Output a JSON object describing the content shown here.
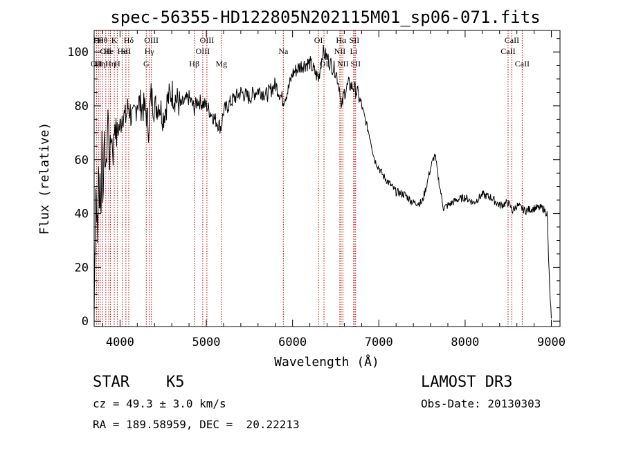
{
  "chart_data": {
    "type": "line",
    "title": "spec-56355-HD122805N202115M01_sp06-071.fits",
    "xlabel": "Wavelength (Å)",
    "ylabel": "Flux (relative)",
    "xlim": [
      3700,
      9100
    ],
    "ylim": [
      -2,
      108
    ],
    "xticks": [
      4000,
      5000,
      6000,
      7000,
      8000,
      9000
    ],
    "yticks": [
      0,
      20,
      40,
      60,
      80,
      100
    ],
    "grid": false,
    "series": [
      {
        "x": [
          3700,
          3710,
          3720,
          3730,
          3740,
          3750,
          3760,
          3770,
          3780,
          3790,
          3800,
          3820,
          3840,
          3860,
          3880,
          3900,
          3920,
          3940,
          3960,
          3980,
          4000,
          4030,
          4060,
          4100,
          4150,
          4200,
          4250,
          4300,
          4330,
          4360,
          4400,
          4450,
          4500,
          4550,
          4600,
          4700,
          4800,
          4860,
          4900,
          5000,
          5100,
          5170,
          5200,
          5300,
          5400,
          5500,
          5600,
          5700,
          5800,
          5890,
          5950,
          6000,
          6100,
          6200,
          6300,
          6350,
          6400,
          6450,
          6500,
          6550,
          6563,
          6600,
          6650,
          6700,
          6750,
          6800,
          6850,
          6900,
          6950,
          7000,
          7050,
          7100,
          7200,
          7300,
          7400,
          7500,
          7550,
          7600,
          7650,
          7700,
          7750,
          7800,
          7850,
          7900,
          8000,
          8100,
          8200,
          8300,
          8400,
          8500,
          8550,
          8600,
          8700,
          8800,
          8900,
          8950,
          8980,
          9000
        ],
        "values": [
          2,
          30,
          50,
          42,
          28,
          60,
          40,
          55,
          38,
          70,
          48,
          65,
          55,
          78,
          60,
          70,
          62,
          75,
          68,
          72,
          72,
          78,
          75,
          80,
          74,
          82,
          80,
          78,
          72,
          84,
          79,
          81,
          76,
          82,
          85,
          80,
          83,
          79,
          82,
          80,
          75,
          72,
          78,
          82,
          85,
          83,
          86,
          84,
          88,
          82,
          86,
          92,
          95,
          96,
          90,
          100,
          98,
          95,
          93,
          86,
          78,
          85,
          88,
          87,
          85,
          80,
          74,
          68,
          60,
          57,
          54,
          52,
          48,
          47,
          44,
          44,
          50,
          57,
          62,
          51,
          42,
          43,
          44,
          45,
          46,
          44,
          47,
          46,
          43,
          44,
          41,
          43,
          41,
          42,
          42,
          40,
          12,
          1
        ]
      }
    ],
    "annotations": {
      "lines": [
        {
          "x": 3727,
          "label": "OII",
          "row": 3
        },
        {
          "x": 3750,
          "label": "Hθ",
          "row": 1
        },
        {
          "x": 3770,
          "label": "Hη",
          "row": 3
        },
        {
          "x": 3798,
          "label": "Hθ",
          "row": 1
        },
        {
          "x": 3835,
          "label": "OII",
          "row": 2
        },
        {
          "x": 3869,
          "label": "He",
          "row": 2
        },
        {
          "x": 3889,
          "label": "Hη",
          "row": 3
        },
        {
          "x": 3933,
          "label": "K",
          "row": 1
        },
        {
          "x": 3968,
          "label": "H",
          "row": 3
        },
        {
          "x": 4026,
          "label": "He",
          "row": 2
        },
        {
          "x": 4068,
          "label": "SII",
          "row": 2
        },
        {
          "x": 4101,
          "label": "Hδ",
          "row": 1
        },
        {
          "x": 4304,
          "label": "G",
          "row": 3
        },
        {
          "x": 4340,
          "label": "Hγ",
          "row": 2
        },
        {
          "x": 4363,
          "label": "OIII",
          "row": 1
        },
        {
          "x": 4861,
          "label": "Hβ",
          "row": 3
        },
        {
          "x": 4959,
          "label": "OIII",
          "row": 2
        },
        {
          "x": 5007,
          "label": "OIII",
          "row": 1
        },
        {
          "x": 5175,
          "label": "Mg",
          "row": 3
        },
        {
          "x": 5893,
          "label": "Na",
          "row": 2
        },
        {
          "x": 6300,
          "label": "OI",
          "row": 1
        },
        {
          "x": 6364,
          "label": "OI",
          "row": 3
        },
        {
          "x": 6548,
          "label": "NII",
          "row": 2
        },
        {
          "x": 6563,
          "label": "Hα",
          "row": 1
        },
        {
          "x": 6583,
          "label": "NII",
          "row": 3
        },
        {
          "x": 6708,
          "label": "Li",
          "row": 2
        },
        {
          "x": 6716,
          "label": "SII",
          "row": 1
        },
        {
          "x": 6731,
          "label": "SII",
          "row": 3
        },
        {
          "x": 8498,
          "label": "CaII",
          "row": 2
        },
        {
          "x": 8542,
          "label": "CaII",
          "row": 1
        },
        {
          "x": 8662,
          "label": "CaII",
          "row": 3
        }
      ],
      "line_color": "#c00000"
    }
  },
  "footer": {
    "class_label": "STAR",
    "subclass": "K5",
    "survey": "LAMOST DR3",
    "cz": "cz = 49.3 ± 3.0 km/s",
    "obs_date": "Obs-Date: 20130303",
    "coords": "RA = 189.58959, DEC =  20.22213"
  }
}
